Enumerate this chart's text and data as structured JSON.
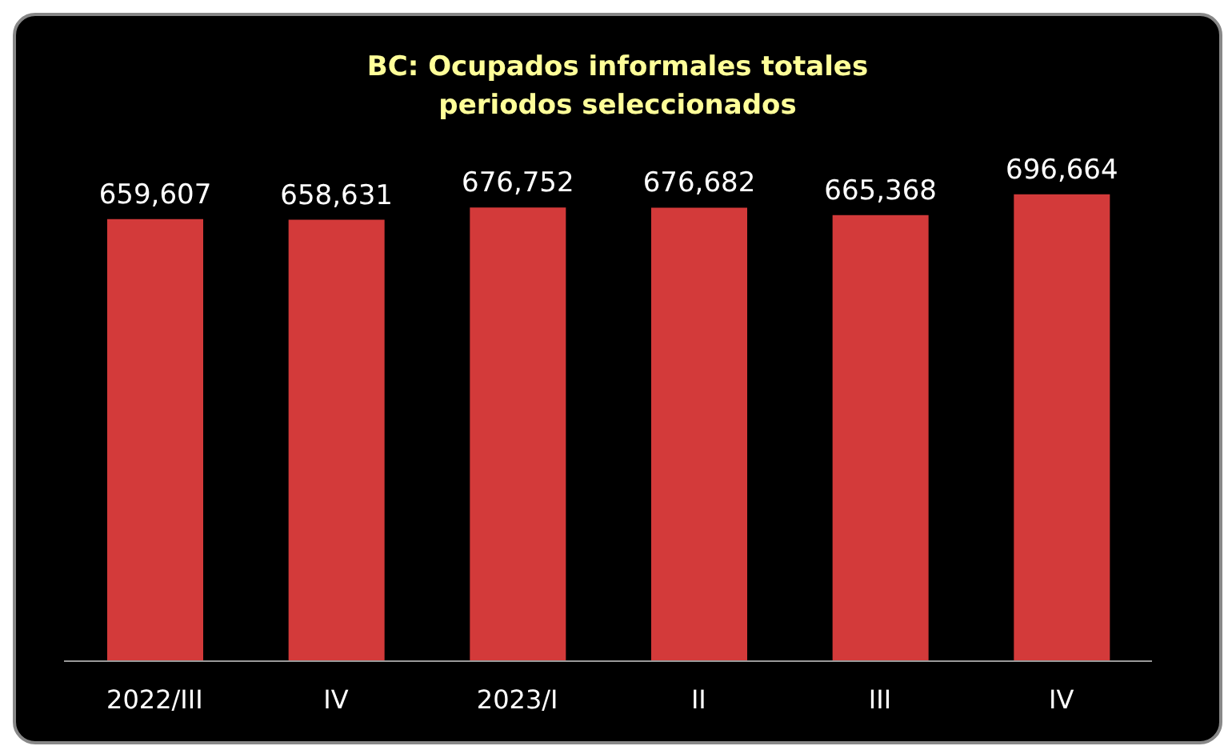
{
  "chart_data": {
    "type": "bar",
    "title": "BC:  Ocupados informales totales\nperiodos seleccionados",
    "categories": [
      "2022/III",
      "IV",
      "2023/I",
      "II",
      "III",
      "IV"
    ],
    "values": [
      659607,
      658631,
      676752,
      676682,
      665368,
      696664
    ],
    "value_labels": [
      "659,607",
      "658,631",
      "676,752",
      "676,682",
      "665,368",
      "696,664"
    ],
    "color": "#d33a3a",
    "grid": false
  }
}
